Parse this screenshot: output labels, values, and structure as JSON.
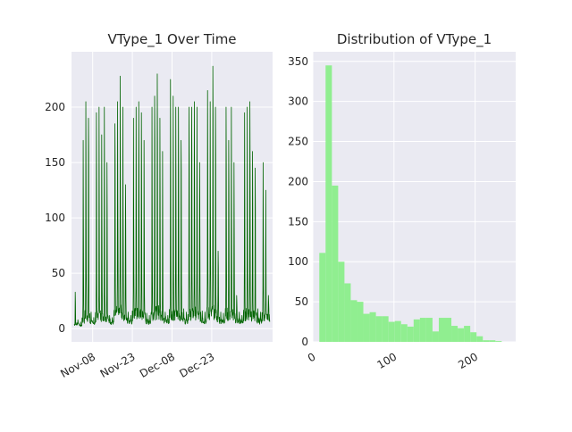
{
  "chart_data": [
    {
      "type": "line",
      "title": "VType_1 Over Time",
      "xlabel": "",
      "ylabel": "",
      "x_tick_labels": [
        "Nov-08",
        "Nov-23",
        "Dec-08",
        "Dec-23"
      ],
      "x_ticks": [
        "2015-11-08",
        "2015-11-23",
        "2015-12-08",
        "2015-12-23"
      ],
      "xlim": [
        "2015-10-31",
        "2016-01-15"
      ],
      "y_ticks": [
        0,
        50,
        100,
        150,
        200
      ],
      "ylim": [
        -11.9,
        250
      ],
      "grid": true,
      "color": "#006400",
      "series": [
        {
          "x": [
            "2015-11-01",
            "2015-11-02",
            "2015-11-03",
            "2015-11-04",
            "2015-11-05",
            "2015-11-06",
            "2015-11-07",
            "2015-11-08",
            "2015-11-09",
            "2015-11-10",
            "2015-11-11",
            "2015-11-12",
            "2015-11-13",
            "2015-11-14",
            "2015-11-15",
            "2015-11-16",
            "2015-11-17",
            "2015-11-18",
            "2015-11-19",
            "2015-11-20",
            "2015-11-21",
            "2015-11-22",
            "2015-11-23",
            "2015-11-24",
            "2015-11-25",
            "2015-11-26",
            "2015-11-27",
            "2015-11-28",
            "2015-11-29",
            "2015-11-30",
            "2015-12-01",
            "2015-12-02",
            "2015-12-03",
            "2015-12-04",
            "2015-12-05",
            "2015-12-06",
            "2015-12-07",
            "2015-12-08",
            "2015-12-09",
            "2015-12-10",
            "2015-12-11",
            "2015-12-12",
            "2015-12-13",
            "2015-12-14",
            "2015-12-15",
            "2015-12-16",
            "2015-12-17",
            "2015-12-18",
            "2015-12-19",
            "2015-12-20",
            "2015-12-21",
            "2015-12-22",
            "2015-12-23",
            "2015-12-24",
            "2015-12-25",
            "2015-12-26",
            "2015-12-27",
            "2015-12-28",
            "2015-12-29",
            "2015-12-30",
            "2015-12-31",
            "2016-01-01",
            "2016-01-02",
            "2016-01-03",
            "2016-01-04",
            "2016-01-05",
            "2016-01-06",
            "2016-01-07",
            "2016-01-08",
            "2016-01-09",
            "2016-01-10",
            "2016-01-11",
            "2016-01-12",
            "2016-01-13"
          ],
          "peak": [
            33,
            8,
            6,
            170,
            205,
            190,
            15,
            10,
            195,
            200,
            175,
            200,
            150,
            12,
            10,
            185,
            205,
            228,
            200,
            130,
            15,
            12,
            190,
            200,
            205,
            195,
            170,
            14,
            12,
            200,
            210,
            230,
            190,
            160,
            15,
            12,
            225,
            210,
            200,
            200,
            170,
            18,
            15,
            200,
            200,
            205,
            200,
            150,
            16,
            15,
            215,
            205,
            237,
            200,
            70,
            15,
            14,
            200,
            170,
            200,
            150,
            30,
            15,
            12,
            195,
            200,
            205,
            160,
            145,
            18,
            15,
            150,
            125,
            30
          ],
          "low": [
            2,
            3,
            1,
            6,
            12,
            10,
            4,
            3,
            10,
            12,
            10,
            11,
            9,
            5,
            4,
            12,
            14,
            15,
            12,
            10,
            6,
            5,
            12,
            13,
            14,
            12,
            10,
            5,
            4,
            13,
            14,
            15,
            12,
            11,
            6,
            5,
            14,
            13,
            12,
            12,
            10,
            6,
            5,
            13,
            13,
            14,
            12,
            10,
            6,
            5,
            14,
            13,
            15,
            12,
            8,
            5,
            5,
            13,
            11,
            12,
            10,
            6,
            5,
            4,
            12,
            13,
            14,
            11,
            10,
            6,
            5,
            10,
            9,
            10
          ]
        }
      ]
    },
    {
      "type": "bar",
      "title": "Distribution of VType_1",
      "xlabel": "",
      "ylabel": "",
      "x_tick_labels": [
        "0",
        "100",
        "200"
      ],
      "x_ticks": [
        0,
        100,
        200
      ],
      "xlim": [
        0,
        250
      ],
      "y_ticks": [
        0,
        50,
        100,
        150,
        200,
        250,
        300,
        350
      ],
      "ylim": [
        0,
        362
      ],
      "bin_start": 0,
      "bin_width": 7.75,
      "values": [
        111,
        345,
        195,
        100,
        73,
        52,
        50,
        35,
        37,
        32,
        32,
        25,
        26,
        22,
        19,
        28,
        30,
        30,
        13,
        30,
        30,
        20,
        17,
        20,
        12,
        7,
        2,
        2,
        1
      ],
      "grid": true,
      "color": "#90ee90"
    }
  ]
}
